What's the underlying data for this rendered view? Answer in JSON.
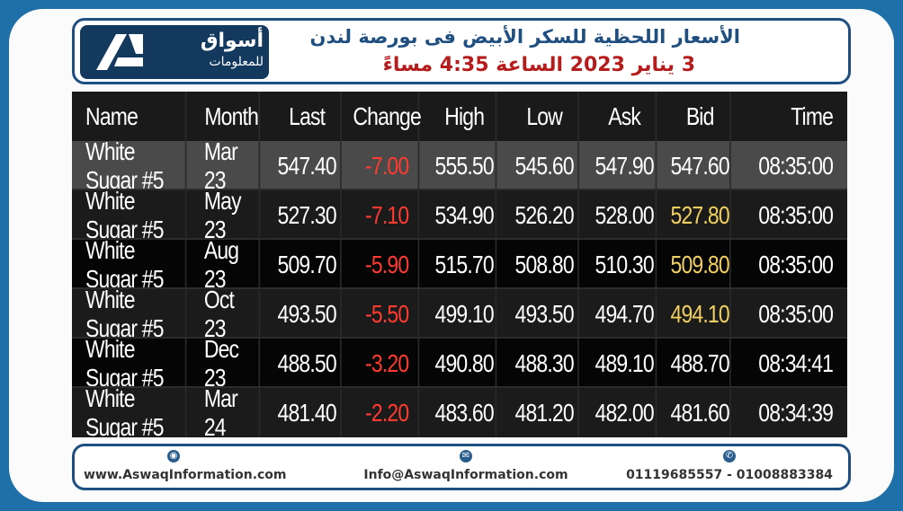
{
  "header": {
    "logo_text_ar": "أسواق",
    "logo_sub_ar": "للمعلومات",
    "title_line1": "الأسعار اللحظية للسكر الأبيض فى بورصة لندن",
    "title_line2": "3 يناير 2023 الساعة 4:35 مساءً"
  },
  "table": {
    "columns": [
      "Name",
      "Month",
      "Last",
      "Change",
      "High",
      "Low",
      "Ask",
      "Bid",
      "Time"
    ],
    "rows": [
      {
        "name": "White Sugar #5",
        "month": "Mar 23",
        "last": "547.40",
        "change": "-7.00",
        "high": "555.50",
        "low": "545.60",
        "ask": "547.90",
        "bid": "547.60",
        "time": "08:35:00"
      },
      {
        "name": "White Sugar #5",
        "month": "May 23",
        "last": "527.30",
        "change": "-7.10",
        "high": "534.90",
        "low": "526.20",
        "ask": "528.00",
        "bid": "527.80",
        "time": "08:35:00"
      },
      {
        "name": "White Sugar #5",
        "month": "Aug 23",
        "last": "509.70",
        "change": "-5.90",
        "high": "515.70",
        "low": "508.80",
        "ask": "510.30",
        "bid": "509.80",
        "time": "08:35:00"
      },
      {
        "name": "White Sugar #5",
        "month": "Oct 23",
        "last": "493.50",
        "change": "-5.50",
        "high": "499.10",
        "low": "493.50",
        "ask": "494.70",
        "bid": "494.10",
        "time": "08:35:00"
      },
      {
        "name": "White Sugar #5",
        "month": "Dec 23",
        "last": "488.50",
        "change": "-3.20",
        "high": "490.80",
        "low": "488.30",
        "ask": "489.10",
        "bid": "488.70",
        "time": "08:34:41"
      },
      {
        "name": "White Sugar #5",
        "month": "Mar 24",
        "last": "481.40",
        "change": "-2.20",
        "high": "483.60",
        "low": "481.20",
        "ask": "482.00",
        "bid": "481.60",
        "time": "08:34:39"
      }
    ]
  },
  "footer": {
    "website": "www.AswaqInformation.com",
    "email": "Info@AswaqInformation.com",
    "phones": "01119685557 - 01008883384",
    "website_icon": "globe-icon",
    "email_icon": "mail-icon",
    "phone_icon": "phone-icon"
  },
  "colors": {
    "brand_blue": "#1f4f80",
    "negative": "#ff3b30",
    "bid_highlight": "#f2d060",
    "title_red": "#b71c1c"
  }
}
